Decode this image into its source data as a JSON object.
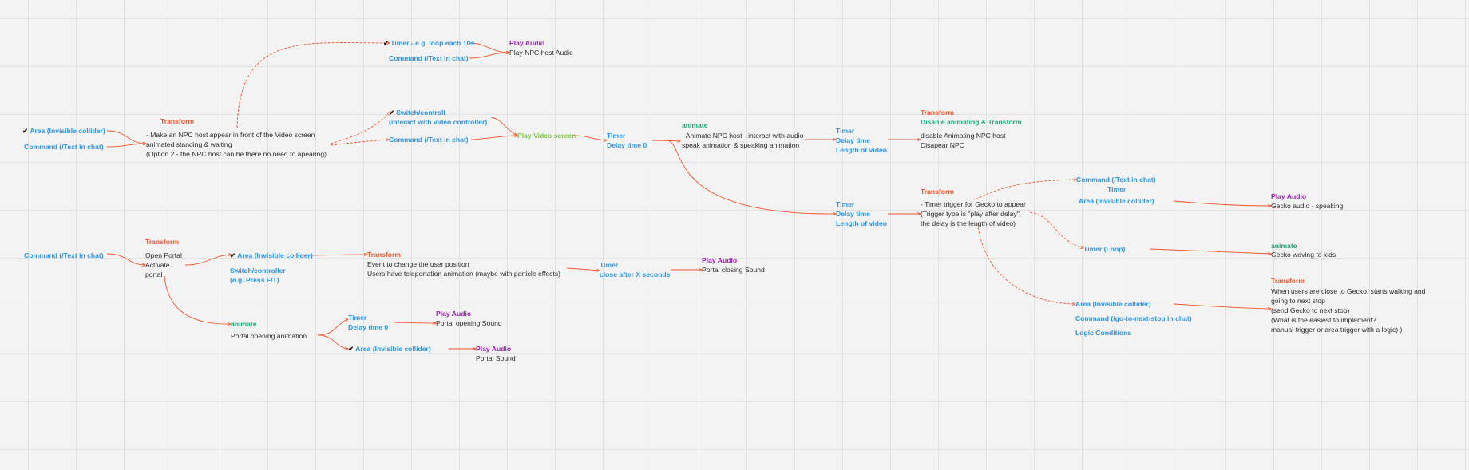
{
  "checkmark": "✔",
  "colors": {
    "trigger": "#2c95e6",
    "transform": "#f2552c",
    "animate": "#18a879",
    "audio": "#9b1fb4",
    "video": "#7ac943",
    "connector": "#f2552c",
    "grid": "#e2e2e2",
    "background": "#f3f3f3"
  },
  "labels": {
    "timer_loop_10s": "Timer - e.g. loop each 10s",
    "command_top": "Command (/Text in chat)",
    "play_audio_top": "Play Audio",
    "play_npc_host_audio": "Play NPC host Audio",
    "area_left": "Area (Invisible collider)",
    "command_left": "Command (/Text in chat)",
    "transform_npc": "Transform",
    "npc_desc": [
      "- Make an NPC host appear in front of the Video screen",
      "animated standing & waiting",
      "(Option 2 - the NPC host can be there no need to apearing)"
    ],
    "switch_control": [
      "Switch/controll",
      "(interact with video controller)"
    ],
    "command_mid": "Command (/Text in chat)",
    "play_video_screen": "Play Video screen",
    "timer_delay0": [
      "Timer",
      "Delay time 0"
    ],
    "animate_npc": "animate",
    "animate_npc_desc": [
      "- Animate NPC host - interact with audio",
      "speak animation & speaking animation"
    ],
    "timer_length_1": [
      "Timer",
      "Delay time",
      "Length of video"
    ],
    "transform_disable": "Transform",
    "disable_title": "Disable animating & Transform",
    "disable_desc": [
      "disable Animating NPC host",
      "Disapear NPC"
    ],
    "timer_length_2": [
      "Timer",
      "Delay time",
      "Length of video"
    ],
    "transform_gecko": "Transform",
    "gecko_desc": [
      "- Timer trigger for Gecko to appear",
      "(Trigger type is \"play after delay\",",
      "the delay is the length of video)"
    ],
    "command_gecko": "Command (/Text in chat)",
    "timer_gecko": "Timer",
    "area_gecko": "Area (Invisible collider)",
    "play_audio_gecko": "Play Audio",
    "gecko_audio": "Gecko audio - speaking",
    "timer_loop_gecko": "Timer (Loop)",
    "animate_gecko": "animate",
    "gecko_waving": "Gecko waving to kids",
    "area_next_stop": "Area (Invisible collider)",
    "command_next_stop": "Command (/go-to-next-stop in chat)",
    "logic_conditions": "Logic Conditions",
    "transform_walk": "Transform",
    "walk_desc": [
      "When users are close to Gecko, starts walking and",
      "going to next stop",
      "(send Gecko to next stop)",
      "(What is the easiest to implement?",
      "manual trigger or area trigger with a logic) )"
    ],
    "command_portal": "Command (/Text in chat)",
    "transform_portal": "Transform",
    "portal_desc": [
      "Open Portal",
      "Activate",
      "portal"
    ],
    "area_portal": "Area (Invisible collider)",
    "switch_portal": [
      "Switch/controller",
      "(e.g. Press F/T)"
    ],
    "transform_teleport": "Transform",
    "teleport_desc": [
      "Event to change the user position",
      "Users have teleportation animation (maybe with particle effects)"
    ],
    "timer_close": [
      "Timer",
      "close after X seconds"
    ],
    "play_audio_close": "Play Audio",
    "portal_closing_sound": "Portal closing Sound",
    "animate_portal": "animate",
    "portal_opening_anim": "Portal opening animation",
    "timer_portal_open": [
      "Timer",
      "Delay time 0"
    ],
    "play_audio_open": "Play Audio",
    "portal_opening_sound": "Portal opening Sound",
    "area_portal_sound": "Area (Invisible collider)",
    "play_audio_portal": "Play Audio",
    "portal_sound": "Portal Sound"
  }
}
